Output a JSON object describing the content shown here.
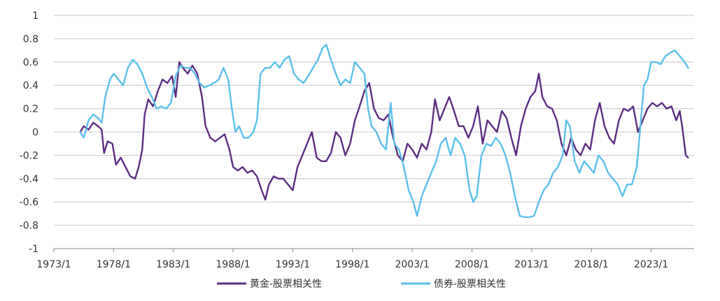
{
  "chart_data": {
    "type": "line",
    "title": "",
    "xlabel": "",
    "ylabel": "",
    "xlim": [
      1973.0,
      2026.6
    ],
    "ylim": [
      -1,
      1
    ],
    "grid": "horizontal",
    "legend_position": "bottom",
    "y_ticks": [
      1,
      0.8,
      0.6,
      0.4,
      0.2,
      0,
      -0.2,
      -0.4,
      -0.6,
      -0.8,
      -1
    ],
    "y_tick_labels": [
      "1",
      "0.8",
      "0.6",
      "0.4",
      "0.2",
      "0",
      "-0.2",
      "-0.4",
      "-0.6",
      "-0.8",
      "-1"
    ],
    "x_ticks": [
      1973.0,
      1978.0,
      1983.0,
      1988.0,
      1993.0,
      1998.0,
      2003.0,
      2008.0,
      2013.0,
      2018.0,
      2023.0
    ],
    "x_tick_labels": [
      "1973/1",
      "1978/1",
      "1983/1",
      "1988/1",
      "1993/1",
      "1998/1",
      "2003/1",
      "2008/1",
      "2013/1",
      "2018/1",
      "2023/1"
    ],
    "series": [
      {
        "name": "黄金-股票相关性",
        "color": "#5b2d82",
        "points": [
          [
            1975.2,
            0.0
          ],
          [
            1975.5,
            0.05
          ],
          [
            1975.9,
            0.02
          ],
          [
            1976.3,
            0.08
          ],
          [
            1976.7,
            0.05
          ],
          [
            1977.0,
            0.02
          ],
          [
            1977.2,
            -0.18
          ],
          [
            1977.5,
            -0.08
          ],
          [
            1977.9,
            -0.1
          ],
          [
            1978.2,
            -0.28
          ],
          [
            1978.6,
            -0.22
          ],
          [
            1979.0,
            -0.3
          ],
          [
            1979.4,
            -0.38
          ],
          [
            1979.8,
            -0.4
          ],
          [
            1980.1,
            -0.3
          ],
          [
            1980.4,
            -0.15
          ],
          [
            1980.6,
            0.15
          ],
          [
            1980.9,
            0.28
          ],
          [
            1981.3,
            0.22
          ],
          [
            1981.7,
            0.35
          ],
          [
            1982.1,
            0.45
          ],
          [
            1982.5,
            0.42
          ],
          [
            1982.9,
            0.48
          ],
          [
            1983.2,
            0.3
          ],
          [
            1983.5,
            0.6
          ],
          [
            1983.8,
            0.55
          ],
          [
            1984.2,
            0.5
          ],
          [
            1984.6,
            0.57
          ],
          [
            1985.0,
            0.5
          ],
          [
            1985.4,
            0.3
          ],
          [
            1985.7,
            0.05
          ],
          [
            1986.1,
            -0.05
          ],
          [
            1986.5,
            -0.08
          ],
          [
            1986.9,
            -0.05
          ],
          [
            1987.3,
            -0.02
          ],
          [
            1987.7,
            -0.15
          ],
          [
            1988.0,
            -0.3
          ],
          [
            1988.4,
            -0.33
          ],
          [
            1988.8,
            -0.3
          ],
          [
            1989.2,
            -0.35
          ],
          [
            1989.6,
            -0.33
          ],
          [
            1990.0,
            -0.38
          ],
          [
            1990.4,
            -0.5
          ],
          [
            1990.7,
            -0.58
          ],
          [
            1991.0,
            -0.45
          ],
          [
            1991.4,
            -0.38
          ],
          [
            1991.8,
            -0.4
          ],
          [
            1992.2,
            -0.4
          ],
          [
            1992.6,
            -0.45
          ],
          [
            1993.0,
            -0.5
          ],
          [
            1993.4,
            -0.3
          ],
          [
            1993.8,
            -0.2
          ],
          [
            1994.2,
            -0.1
          ],
          [
            1994.6,
            0.0
          ],
          [
            1995.0,
            -0.22
          ],
          [
            1995.4,
            -0.25
          ],
          [
            1995.8,
            -0.25
          ],
          [
            1996.2,
            -0.18
          ],
          [
            1996.6,
            0.0
          ],
          [
            1997.0,
            -0.05
          ],
          [
            1997.4,
            -0.2
          ],
          [
            1997.8,
            -0.1
          ],
          [
            1998.2,
            0.1
          ],
          [
            1998.6,
            0.22
          ],
          [
            1999.0,
            0.35
          ],
          [
            1999.4,
            0.42
          ],
          [
            1999.8,
            0.2
          ],
          [
            2000.2,
            0.12
          ],
          [
            2000.6,
            0.1
          ],
          [
            2001.0,
            0.15
          ],
          [
            2001.4,
            -0.05
          ],
          [
            2001.8,
            -0.2
          ],
          [
            2002.2,
            -0.25
          ],
          [
            2002.6,
            -0.1
          ],
          [
            2003.0,
            -0.15
          ],
          [
            2003.4,
            -0.22
          ],
          [
            2003.8,
            -0.1
          ],
          [
            2004.2,
            -0.15
          ],
          [
            2004.6,
            0.0
          ],
          [
            2004.9,
            0.28
          ],
          [
            2005.3,
            0.1
          ],
          [
            2005.7,
            0.2
          ],
          [
            2006.1,
            0.3
          ],
          [
            2006.5,
            0.18
          ],
          [
            2006.9,
            0.05
          ],
          [
            2007.3,
            0.05
          ],
          [
            2007.7,
            -0.05
          ],
          [
            2008.1,
            0.05
          ],
          [
            2008.5,
            0.22
          ],
          [
            2008.9,
            -0.1
          ],
          [
            2009.3,
            0.1
          ],
          [
            2009.7,
            0.05
          ],
          [
            2010.1,
            0.0
          ],
          [
            2010.5,
            0.18
          ],
          [
            2010.9,
            0.12
          ],
          [
            2011.3,
            -0.05
          ],
          [
            2011.7,
            -0.2
          ],
          [
            2012.1,
            0.05
          ],
          [
            2012.5,
            0.2
          ],
          [
            2012.9,
            0.3
          ],
          [
            2013.3,
            0.35
          ],
          [
            2013.6,
            0.5
          ],
          [
            2013.9,
            0.3
          ],
          [
            2014.3,
            0.22
          ],
          [
            2014.7,
            0.2
          ],
          [
            2015.1,
            0.1
          ],
          [
            2015.5,
            -0.1
          ],
          [
            2015.9,
            -0.2
          ],
          [
            2016.3,
            -0.05
          ],
          [
            2016.7,
            -0.15
          ],
          [
            2017.1,
            -0.2
          ],
          [
            2017.5,
            -0.1
          ],
          [
            2017.9,
            -0.15
          ],
          [
            2018.3,
            0.1
          ],
          [
            2018.7,
            0.25
          ],
          [
            2019.1,
            0.05
          ],
          [
            2019.5,
            -0.05
          ],
          [
            2019.9,
            -0.1
          ],
          [
            2020.3,
            0.1
          ],
          [
            2020.7,
            0.2
          ],
          [
            2021.1,
            0.18
          ],
          [
            2021.5,
            0.22
          ],
          [
            2021.9,
            0.0
          ],
          [
            2022.3,
            0.1
          ],
          [
            2022.7,
            0.2
          ],
          [
            2023.1,
            0.25
          ],
          [
            2023.5,
            0.22
          ],
          [
            2023.9,
            0.25
          ],
          [
            2024.3,
            0.2
          ],
          [
            2024.7,
            0.22
          ],
          [
            2025.1,
            0.1
          ],
          [
            2025.4,
            0.18
          ],
          [
            2025.6,
            0.05
          ],
          [
            2025.9,
            -0.2
          ],
          [
            2026.1,
            -0.22
          ]
        ]
      },
      {
        "name": "债券-股票相关性",
        "color": "#5bc0eb",
        "points": [
          [
            1975.2,
            0.0
          ],
          [
            1975.5,
            -0.05
          ],
          [
            1975.9,
            0.1
          ],
          [
            1976.3,
            0.15
          ],
          [
            1976.7,
            0.12
          ],
          [
            1977.0,
            0.08
          ],
          [
            1977.3,
            0.3
          ],
          [
            1977.7,
            0.45
          ],
          [
            1978.0,
            0.5
          ],
          [
            1978.4,
            0.45
          ],
          [
            1978.8,
            0.4
          ],
          [
            1979.2,
            0.55
          ],
          [
            1979.6,
            0.62
          ],
          [
            1980.0,
            0.58
          ],
          [
            1980.4,
            0.5
          ],
          [
            1980.8,
            0.38
          ],
          [
            1981.2,
            0.3
          ],
          [
            1981.6,
            0.2
          ],
          [
            1982.0,
            0.22
          ],
          [
            1982.4,
            0.2
          ],
          [
            1982.8,
            0.25
          ],
          [
            1983.2,
            0.48
          ],
          [
            1983.6,
            0.57
          ],
          [
            1984.0,
            0.55
          ],
          [
            1984.4,
            0.55
          ],
          [
            1984.8,
            0.5
          ],
          [
            1985.2,
            0.42
          ],
          [
            1985.6,
            0.38
          ],
          [
            1986.0,
            0.4
          ],
          [
            1986.4,
            0.42
          ],
          [
            1986.8,
            0.45
          ],
          [
            1987.2,
            0.55
          ],
          [
            1987.6,
            0.45
          ],
          [
            1987.9,
            0.2
          ],
          [
            1988.2,
            0.0
          ],
          [
            1988.5,
            0.05
          ],
          [
            1988.9,
            -0.05
          ],
          [
            1989.3,
            -0.05
          ],
          [
            1989.7,
            0.0
          ],
          [
            1990.0,
            0.1
          ],
          [
            1990.3,
            0.5
          ],
          [
            1990.7,
            0.55
          ],
          [
            1991.1,
            0.55
          ],
          [
            1991.5,
            0.6
          ],
          [
            1991.9,
            0.55
          ],
          [
            1992.3,
            0.62
          ],
          [
            1992.7,
            0.65
          ],
          [
            1993.1,
            0.5
          ],
          [
            1993.5,
            0.45
          ],
          [
            1993.9,
            0.42
          ],
          [
            1994.3,
            0.48
          ],
          [
            1994.7,
            0.55
          ],
          [
            1995.1,
            0.62
          ],
          [
            1995.5,
            0.72
          ],
          [
            1995.8,
            0.75
          ],
          [
            1996.2,
            0.62
          ],
          [
            1996.6,
            0.5
          ],
          [
            1997.0,
            0.4
          ],
          [
            1997.4,
            0.45
          ],
          [
            1997.8,
            0.42
          ],
          [
            1998.2,
            0.6
          ],
          [
            1998.6,
            0.55
          ],
          [
            1999.0,
            0.5
          ],
          [
            1999.3,
            0.2
          ],
          [
            1999.6,
            0.05
          ],
          [
            2000.0,
            0.0
          ],
          [
            2000.4,
            -0.1
          ],
          [
            2000.8,
            -0.15
          ],
          [
            2001.2,
            0.25
          ],
          [
            2001.5,
            -0.1
          ],
          [
            2001.9,
            -0.15
          ],
          [
            2002.3,
            -0.3
          ],
          [
            2002.7,
            -0.5
          ],
          [
            2003.1,
            -0.6
          ],
          [
            2003.4,
            -0.72
          ],
          [
            2003.8,
            -0.55
          ],
          [
            2004.2,
            -0.45
          ],
          [
            2004.6,
            -0.35
          ],
          [
            2005.0,
            -0.25
          ],
          [
            2005.4,
            -0.1
          ],
          [
            2005.8,
            -0.05
          ],
          [
            2006.2,
            -0.2
          ],
          [
            2006.6,
            -0.05
          ],
          [
            2007.0,
            -0.1
          ],
          [
            2007.4,
            -0.2
          ],
          [
            2007.8,
            -0.5
          ],
          [
            2008.1,
            -0.6
          ],
          [
            2008.4,
            -0.55
          ],
          [
            2008.8,
            -0.2
          ],
          [
            2009.2,
            -0.1
          ],
          [
            2009.6,
            -0.12
          ],
          [
            2010.0,
            -0.05
          ],
          [
            2010.4,
            -0.1
          ],
          [
            2010.8,
            -0.2
          ],
          [
            2011.2,
            -0.35
          ],
          [
            2011.6,
            -0.55
          ],
          [
            2012.0,
            -0.72
          ],
          [
            2012.4,
            -0.73
          ],
          [
            2012.8,
            -0.73
          ],
          [
            2013.2,
            -0.72
          ],
          [
            2013.6,
            -0.6
          ],
          [
            2014.0,
            -0.5
          ],
          [
            2014.4,
            -0.45
          ],
          [
            2014.8,
            -0.35
          ],
          [
            2015.2,
            -0.3
          ],
          [
            2015.6,
            -0.2
          ],
          [
            2015.9,
            0.1
          ],
          [
            2016.2,
            0.05
          ],
          [
            2016.6,
            -0.25
          ],
          [
            2017.0,
            -0.35
          ],
          [
            2017.4,
            -0.25
          ],
          [
            2017.8,
            -0.3
          ],
          [
            2018.2,
            -0.35
          ],
          [
            2018.6,
            -0.2
          ],
          [
            2019.0,
            -0.25
          ],
          [
            2019.4,
            -0.35
          ],
          [
            2019.8,
            -0.4
          ],
          [
            2020.2,
            -0.45
          ],
          [
            2020.6,
            -0.55
          ],
          [
            2021.0,
            -0.45
          ],
          [
            2021.4,
            -0.45
          ],
          [
            2021.8,
            -0.3
          ],
          [
            2022.1,
            0.05
          ],
          [
            2022.4,
            0.4
          ],
          [
            2022.7,
            0.45
          ],
          [
            2023.0,
            0.6
          ],
          [
            2023.4,
            0.6
          ],
          [
            2023.8,
            0.58
          ],
          [
            2024.2,
            0.65
          ],
          [
            2024.6,
            0.68
          ],
          [
            2025.0,
            0.7
          ],
          [
            2025.4,
            0.65
          ],
          [
            2025.8,
            0.6
          ],
          [
            2026.1,
            0.55
          ]
        ]
      }
    ]
  }
}
